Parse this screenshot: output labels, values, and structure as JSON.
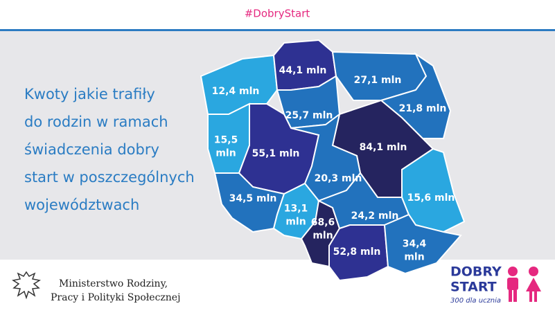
{
  "header": {
    "hashtag": "#DobryStart"
  },
  "intro": {
    "lines": [
      "Kwoty jakie trafiły",
      "do rodzin w ramach",
      "świadczenia dobry",
      "start w poszczególnych",
      "województwach"
    ]
  },
  "regions": [
    {
      "label": [
        "12,4 mln"
      ]
    },
    {
      "label": [
        "44,1 mln"
      ]
    },
    {
      "label": [
        "27,1 mln"
      ]
    },
    {
      "label": [
        "21,8 mln"
      ]
    },
    {
      "label": [
        "25,7 mln"
      ]
    },
    {
      "label": [
        "15,5",
        "mln"
      ]
    },
    {
      "label": [
        "55,1 mln"
      ]
    },
    {
      "label": [
        "84,1 mln"
      ]
    },
    {
      "label": [
        "20,3 mln"
      ]
    },
    {
      "label": [
        "34,5 mln"
      ]
    },
    {
      "label": [
        "13,1",
        "mln"
      ]
    },
    {
      "label": [
        "68,6",
        "mln"
      ]
    },
    {
      "label": [
        "24,2 mln"
      ]
    },
    {
      "label": [
        "15,6 mln"
      ]
    },
    {
      "label": [
        "52,8 mln"
      ]
    },
    {
      "label": [
        "34,4",
        "mln"
      ]
    }
  ],
  "footer": {
    "ministry": [
      "Ministerstwo Rodziny,",
      "Pracy i Polityki Społecznej"
    ],
    "logo": [
      "DOBRY",
      "START"
    ],
    "slogan": "300 dla ucznia"
  }
}
